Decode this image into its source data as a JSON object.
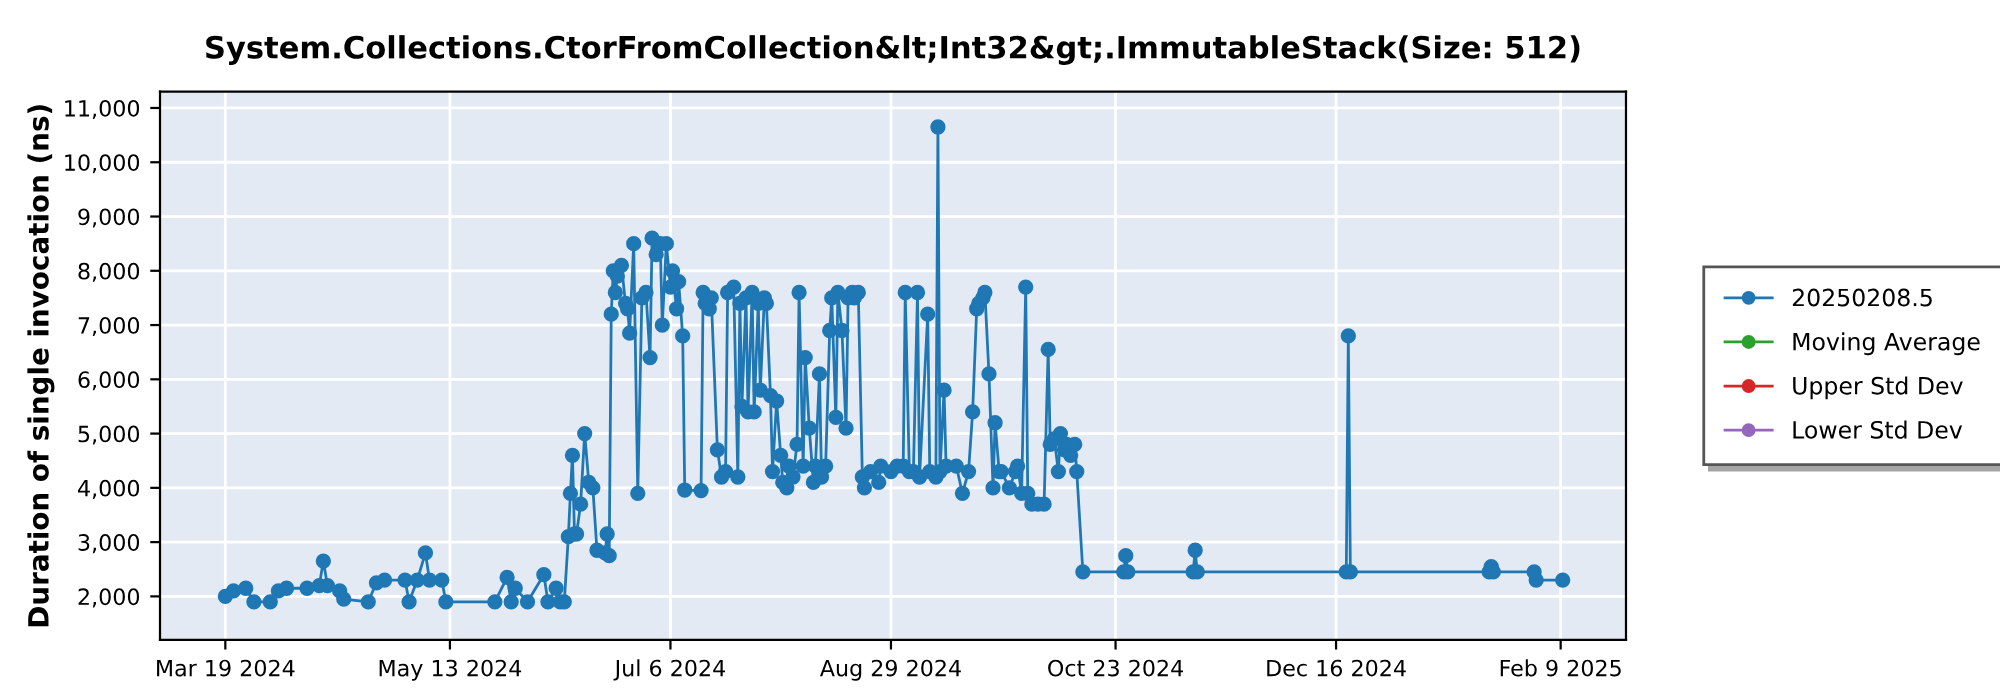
{
  "chart_data": {
    "type": "line",
    "title": "System.Collections.CtorFromCollection&lt;Int32&gt;.ImmutableStack(Size: 512)",
    "ylabel": "Duration of single invocation (ns)",
    "xlim": [
      "2024-03-03",
      "2025-02-25"
    ],
    "ylim": [
      1200,
      11300
    ],
    "xticks": [
      {
        "value": "2024-03-19",
        "label": "Mar 19 2024"
      },
      {
        "value": "2024-05-13",
        "label": "May 13 2024"
      },
      {
        "value": "2024-07-06",
        "label": "Jul 6 2024"
      },
      {
        "value": "2024-08-29",
        "label": "Aug 29 2024"
      },
      {
        "value": "2024-10-23",
        "label": "Oct 23 2024"
      },
      {
        "value": "2024-12-16",
        "label": "Dec 16 2024"
      },
      {
        "value": "2025-02-09",
        "label": "Feb 9 2025"
      }
    ],
    "yticks": [
      {
        "value": 2000,
        "label": "2,000"
      },
      {
        "value": 3000,
        "label": "3,000"
      },
      {
        "value": 4000,
        "label": "4,000"
      },
      {
        "value": 5000,
        "label": "5,000"
      },
      {
        "value": 6000,
        "label": "6,000"
      },
      {
        "value": 7000,
        "label": "7,000"
      },
      {
        "value": 8000,
        "label": "8,000"
      },
      {
        "value": 9000,
        "label": "9,000"
      },
      {
        "value": 10000,
        "label": "10,000"
      },
      {
        "value": 11000,
        "label": "11,000"
      }
    ],
    "grid": true,
    "legend": "right",
    "marker": "circle",
    "line_style": "solid",
    "series": [
      {
        "name": "20250208.5",
        "color": "#1f77b4",
        "x": [
          "2024-03-19",
          "2024-03-21",
          "2024-03-24",
          "2024-03-26",
          "2024-03-30",
          "2024-04-01",
          "2024-04-03",
          "2024-04-08",
          "2024-04-11",
          "2024-04-12",
          "2024-04-13",
          "2024-04-16",
          "2024-04-17",
          "2024-04-23",
          "2024-04-25",
          "2024-04-27",
          "2024-05-02",
          "2024-05-03",
          "2024-05-05",
          "2024-05-07",
          "2024-05-08",
          "2024-05-11",
          "2024-05-12",
          "2024-05-24",
          "2024-05-27",
          "2024-05-28",
          "2024-05-29",
          "2024-06-01",
          "2024-06-05",
          "2024-06-06",
          "2024-06-08",
          "2024-06-09",
          "2024-06-10",
          "2024-06-11",
          "2024-06-11T12:00",
          "2024-06-12",
          "2024-06-12T12:00",
          "2024-06-13",
          "2024-06-14",
          "2024-06-15",
          "2024-06-16",
          "2024-06-17",
          "2024-06-18",
          "2024-06-20",
          "2024-06-20T12:00",
          "2024-06-21",
          "2024-06-21T12:00",
          "2024-06-22",
          "2024-06-22T12:00",
          "2024-06-23",
          "2024-06-24",
          "2024-06-25",
          "2024-06-25T12:00",
          "2024-06-26",
          "2024-06-27",
          "2024-06-28",
          "2024-06-29",
          "2024-06-30",
          "2024-07-01",
          "2024-07-01T12:00",
          "2024-07-02T12:00",
          "2024-07-03T12:00",
          "2024-07-04",
          "2024-07-05",
          "2024-07-06",
          "2024-07-06T12:00",
          "2024-07-07T12:00",
          "2024-07-08",
          "2024-07-09",
          "2024-07-09T12:00",
          "2024-07-13T12:00",
          "2024-07-14",
          "2024-07-14T12:00",
          "2024-07-15T12:00",
          "2024-07-16",
          "2024-07-17T12:00",
          "2024-07-18T12:00",
          "2024-07-19T12:00",
          "2024-07-20",
          "2024-07-21T12:00",
          "2024-07-22T12:00",
          "2024-07-23",
          "2024-07-23T12:00",
          "2024-07-24T12:00",
          "2024-07-25",
          "2024-07-26",
          "2024-07-26T12:00",
          "2024-07-27T12:00",
          "2024-07-28",
          "2024-07-29",
          "2024-07-29T12:00",
          "2024-07-30T12:00",
          "2024-07-31",
          "2024-08-01",
          "2024-08-02",
          "2024-08-02T12:00",
          "2024-08-03T12:00",
          "2024-08-04",
          "2024-08-05",
          "2024-08-06",
          "2024-08-06T12:00",
          "2024-08-07T12:00",
          "2024-08-08",
          "2024-08-09",
          "2024-08-10",
          "2024-08-10T12:00",
          "2024-08-11T12:00",
          "2024-08-12",
          "2024-08-13",
          "2024-08-14",
          "2024-08-14T12:00",
          "2024-08-15T12:00",
          "2024-08-16",
          "2024-08-17",
          "2024-08-18",
          "2024-08-18T12:00",
          "2024-08-19T12:00",
          "2024-08-20",
          "2024-08-21",
          "2024-08-22",
          "2024-08-22T12:00",
          "2024-08-24",
          "2024-08-26",
          "2024-08-26T12:00",
          "2024-08-29",
          "2024-08-30T12:00",
          "2024-09-01",
          "2024-09-01T12:00",
          "2024-09-02T12:00",
          "2024-09-03T12:00",
          "2024-09-04T12:00",
          "2024-09-05",
          "2024-09-07",
          "2024-09-07T12:00",
          "2024-09-09",
          "2024-09-09T12:00",
          "2024-09-10",
          "2024-09-11",
          "2024-09-11T12:00",
          "2024-09-14",
          "2024-09-15T12:00",
          "2024-09-17",
          "2024-09-18",
          "2024-09-19",
          "2024-09-19T12:00",
          "2024-09-20T12:00",
          "2024-09-21",
          "2024-09-22",
          "2024-09-23",
          "2024-09-23T12:00",
          "2024-09-24T12:00",
          "2024-09-25",
          "2024-09-27",
          "2024-09-28T12:00",
          "2024-09-29",
          "2024-09-30",
          "2024-10-01",
          "2024-10-01T12:00",
          "2024-10-02T12:00",
          "2024-10-04",
          "2024-10-05T12:00",
          "2024-10-06T12:00",
          "2024-10-07",
          "2024-10-08",
          "2024-10-09",
          "2024-10-09T12:00",
          "2024-10-10T12:00",
          "2024-10-11",
          "2024-10-12",
          "2024-10-13",
          "2024-10-13T12:00",
          "2024-10-15",
          "2024-10-25",
          "2024-10-25T12:00",
          "2024-10-26",
          "2024-11-11",
          "2024-11-11T12:00",
          "2024-11-12",
          "2024-12-18T12:00",
          "2024-12-19",
          "2024-12-19T12:00",
          "2025-01-22T12:00",
          "2025-01-23",
          "2025-01-23T12:00",
          "2025-02-02T12:00",
          "2025-02-03",
          "2025-02-09T12:00"
        ],
        "values": [
          2000,
          2100,
          2150,
          1900,
          1900,
          2100,
          2150,
          2150,
          2200,
          2650,
          2200,
          2100,
          1950,
          1900,
          2250,
          2300,
          2300,
          1900,
          2300,
          2800,
          2300,
          2300,
          1900,
          1900,
          2350,
          1900,
          2150,
          1900,
          2400,
          1900,
          2150,
          1900,
          1900,
          3100,
          3900,
          4600,
          3150,
          3150,
          3700,
          5000,
          4100,
          4000,
          2850,
          2800,
          3150,
          2750,
          7200,
          8000,
          7600,
          7900,
          8100,
          7400,
          7300,
          6850,
          8500,
          3900,
          7500,
          7600,
          6400,
          8600,
          8300,
          8500,
          7000,
          8500,
          7700,
          8000,
          7300,
          7800,
          6800,
          3960,
          3950,
          7600,
          7400,
          7300,
          7500,
          4700,
          4200,
          4300,
          7600,
          7700,
          4200,
          7400,
          5500,
          7500,
          5400,
          7600,
          5400,
          7400,
          5800,
          7500,
          7400,
          5700,
          4300,
          5600,
          4600,
          4100,
          4000,
          4400,
          4200,
          4800,
          7600,
          4400,
          6400,
          5100,
          4100,
          4400,
          6100,
          4200,
          4400,
          6900,
          7500,
          5300,
          7600,
          6900,
          5100,
          7500,
          7600,
          7500,
          7600,
          4200,
          4000,
          4300,
          4100,
          4400,
          4300,
          4400,
          4400,
          7600,
          4300,
          4300,
          7600,
          4200,
          7200,
          4300,
          4200,
          10650,
          4300,
          5800,
          4400,
          4400,
          3900,
          4300,
          5400,
          7300,
          7400,
          7500,
          7600,
          6100,
          4000,
          5200,
          4300,
          4300,
          4000,
          4300,
          4400,
          3900,
          7700,
          3900,
          3700,
          3700,
          3700,
          6550,
          4800,
          4900,
          4300,
          5000,
          4700,
          4800,
          4600,
          4800,
          4300,
          2450,
          2450,
          2750,
          2450,
          2450,
          2850,
          2450,
          2450,
          6800,
          2450,
          2450,
          2550,
          2450,
          2450,
          2300,
          2300
        ]
      },
      {
        "name": "Moving Average",
        "color": "#2ca02c"
      },
      {
        "name": "Upper Std Dev",
        "color": "#d62728"
      },
      {
        "name": "Lower Std Dev",
        "color": "#9467bd"
      }
    ]
  }
}
